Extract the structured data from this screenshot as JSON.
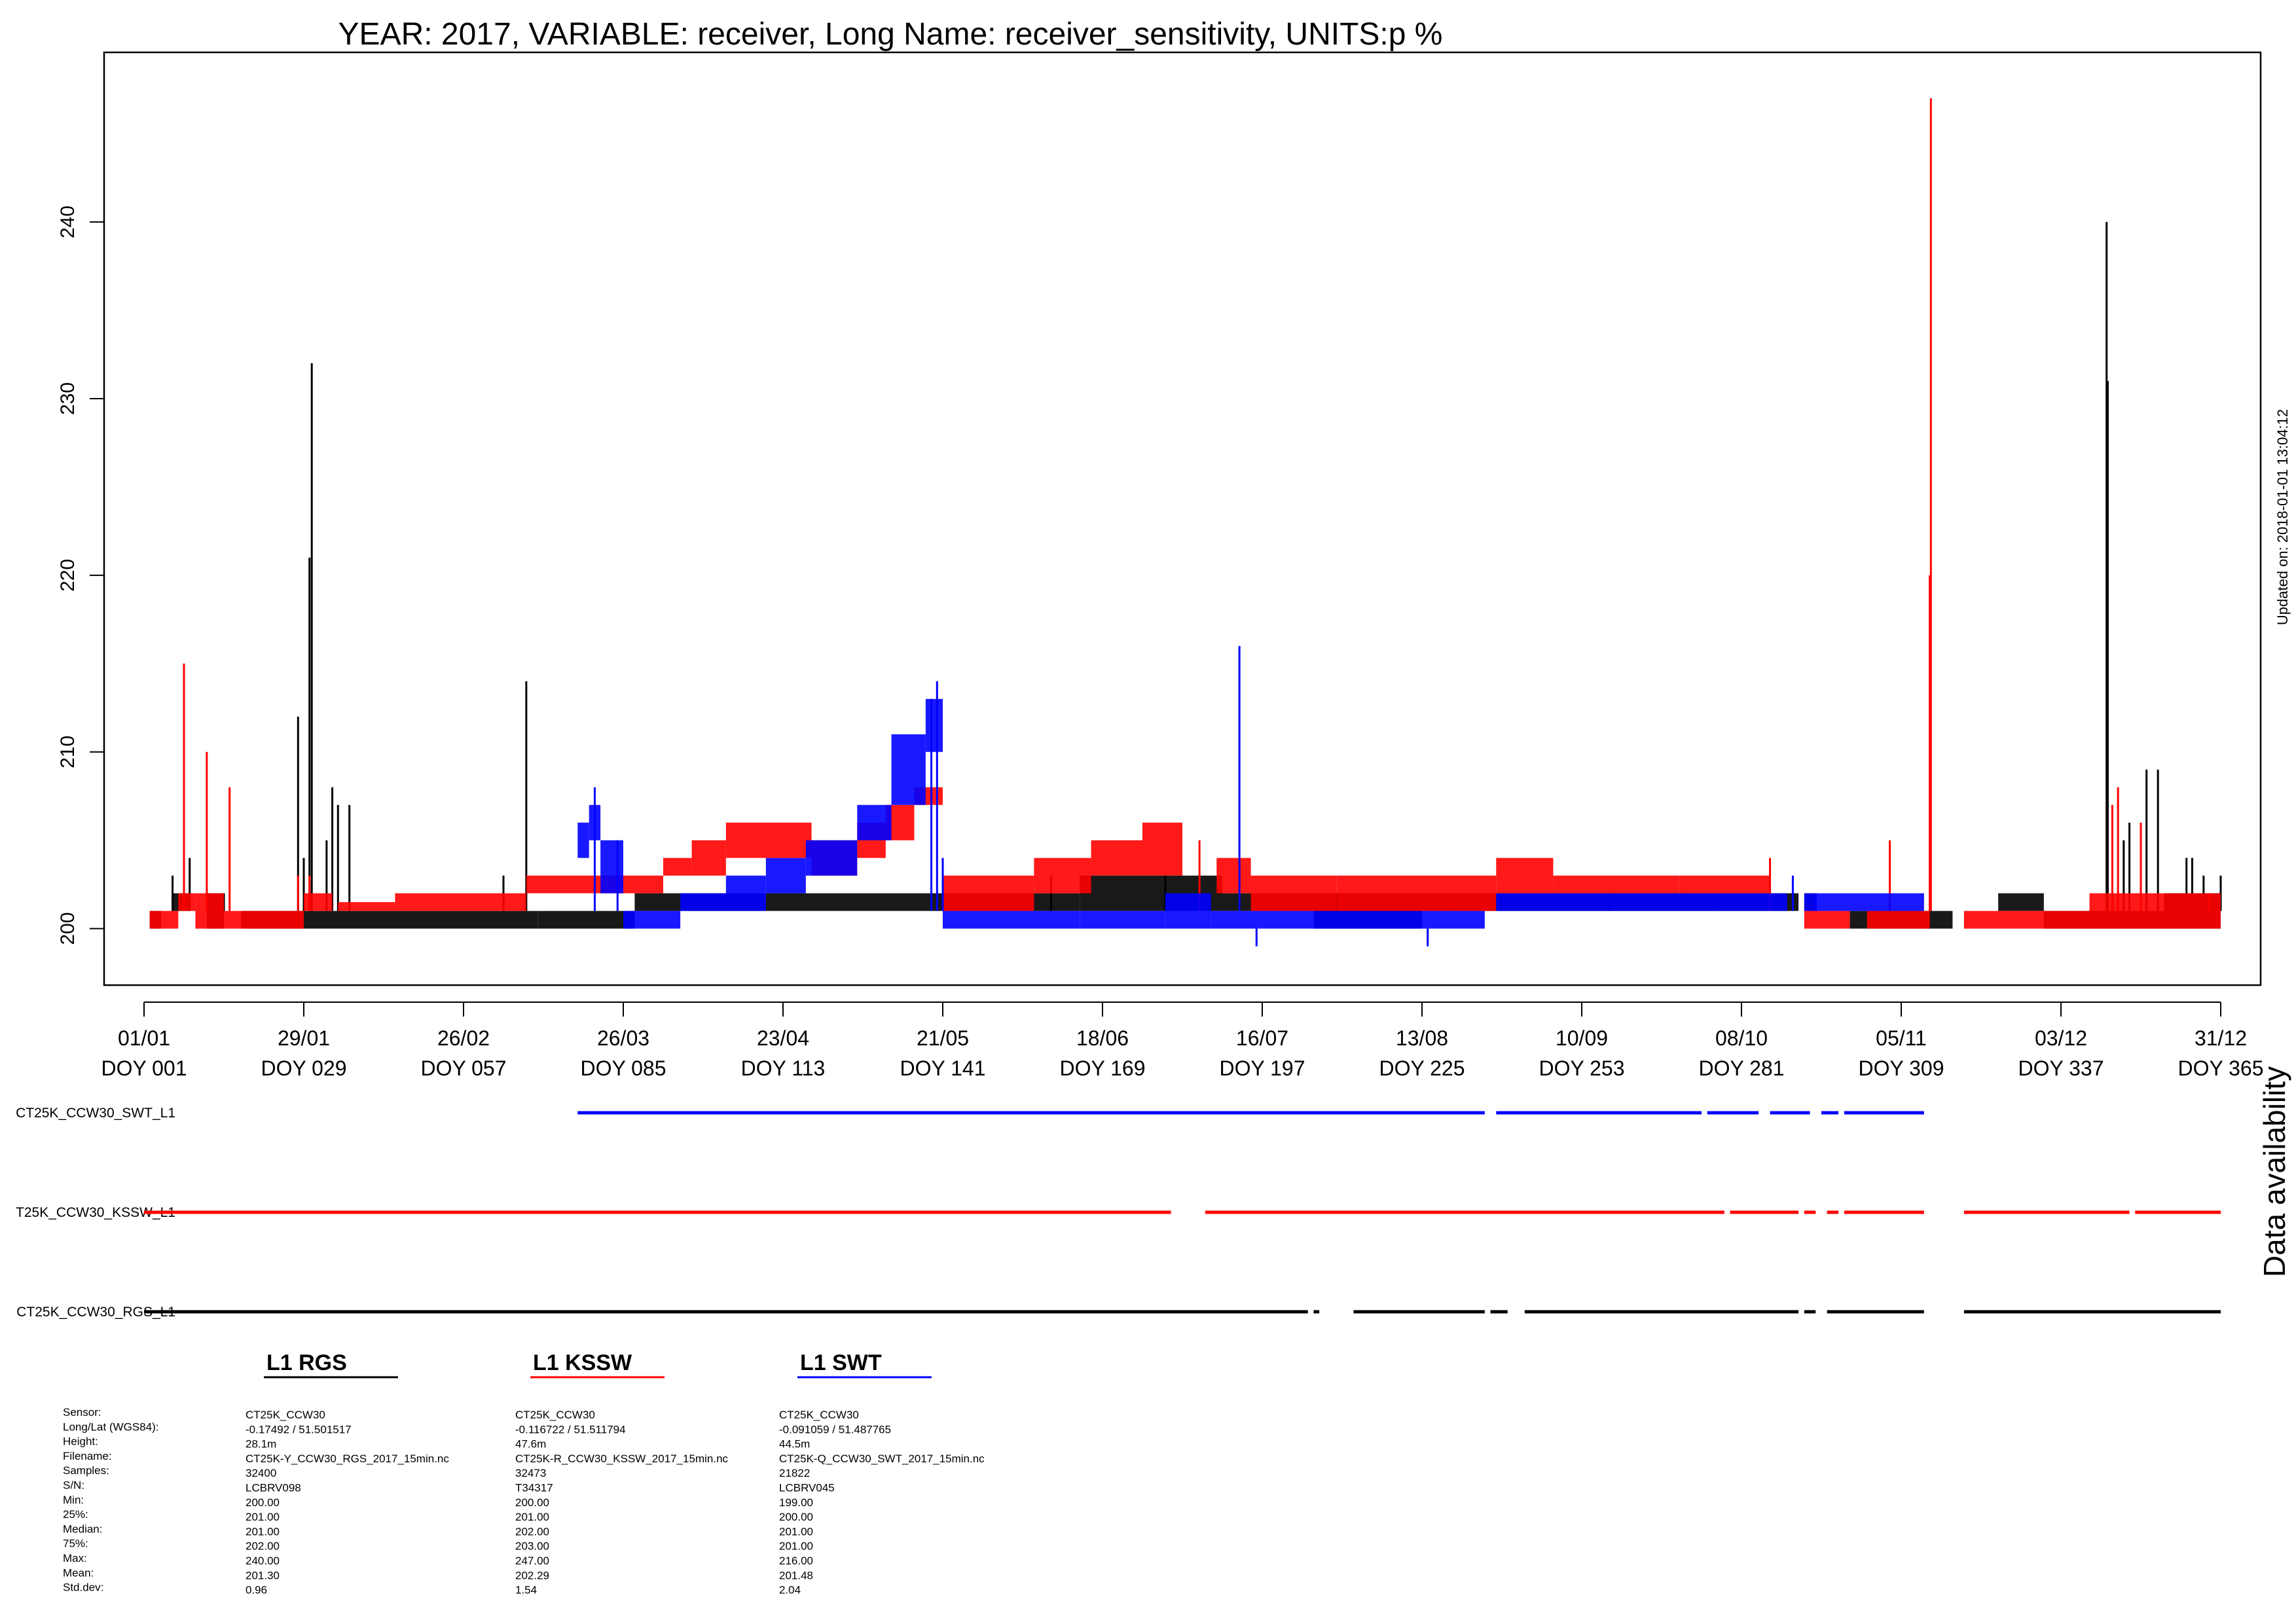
{
  "chart_data": {
    "type": "line",
    "title": "YEAR: 2017, VARIABLE: receiver, Long Name: receiver_sensitivity, UNITS:p %",
    "updated": "Updated on: 2018-01-01 13:04:12",
    "ylim": [
      196.8,
      249.6
    ],
    "xlim": [
      -6,
      372
    ],
    "yticks": [
      200,
      210,
      220,
      230,
      240
    ],
    "ytick_labels": [
      "200",
      "210",
      "220",
      "230",
      "240"
    ],
    "xticks": [
      {
        "doy": 1,
        "date": "01/01",
        "label": "DOY 001"
      },
      {
        "doy": 29,
        "date": "29/01",
        "label": "DOY 029"
      },
      {
        "doy": 57,
        "date": "26/02",
        "label": "DOY 057"
      },
      {
        "doy": 85,
        "date": "26/03",
        "label": "DOY 085"
      },
      {
        "doy": 113,
        "date": "23/04",
        "label": "DOY 113"
      },
      {
        "doy": 141,
        "date": "21/05",
        "label": "DOY 141"
      },
      {
        "doy": 169,
        "date": "18/06",
        "label": "DOY 169"
      },
      {
        "doy": 197,
        "date": "16/07",
        "label": "DOY 197"
      },
      {
        "doy": 225,
        "date": "13/08",
        "label": "DOY 225"
      },
      {
        "doy": 253,
        "date": "10/09",
        "label": "DOY 253"
      },
      {
        "doy": 281,
        "date": "08/10",
        "label": "DOY 281"
      },
      {
        "doy": 309,
        "date": "05/11",
        "label": "DOY 309"
      },
      {
        "doy": 337,
        "date": "03/12",
        "label": "DOY 337"
      },
      {
        "doy": 365,
        "date": "31/12",
        "label": "DOY 365"
      }
    ],
    "series": [
      {
        "name": "L1 RGS",
        "color": "#000000",
        "bands": [
          [
            2,
            4,
            200,
            201
          ],
          [
            6,
            9,
            201,
            202
          ],
          [
            12,
            15,
            200,
            202
          ],
          [
            18,
            29,
            200,
            201
          ],
          [
            29,
            50,
            200,
            201
          ],
          [
            50,
            70,
            200,
            201
          ],
          [
            70,
            87,
            200,
            201
          ],
          [
            87,
            110,
            201,
            202
          ],
          [
            110,
            140,
            201,
            202
          ],
          [
            140,
            165,
            201,
            202
          ],
          [
            165,
            190,
            201,
            203
          ],
          [
            190,
            206,
            201,
            202
          ],
          [
            206,
            225,
            200,
            202
          ],
          [
            225,
            245,
            201,
            202
          ],
          [
            245,
            281,
            201,
            202
          ],
          [
            281,
            291,
            201,
            202
          ],
          [
            292,
            294,
            201,
            202
          ],
          [
            300,
            318,
            200,
            201
          ],
          [
            326,
            334,
            201,
            202
          ],
          [
            334,
            355,
            200,
            201
          ],
          [
            355,
            365,
            200,
            202
          ]
        ],
        "spikes": [
          [
            6,
            203
          ],
          [
            9,
            204
          ],
          [
            15,
            202
          ],
          [
            28,
            212
          ],
          [
            29,
            204
          ],
          [
            30,
            221
          ],
          [
            30.4,
            232
          ],
          [
            33,
            205
          ],
          [
            34,
            208
          ],
          [
            35,
            207
          ],
          [
            37,
            207
          ],
          [
            68,
            214
          ],
          [
            64,
            203
          ],
          [
            160,
            203
          ],
          [
            180,
            203
          ],
          [
            210,
            202
          ],
          [
            230,
            202
          ],
          [
            258,
            202
          ],
          [
            345,
            240
          ],
          [
            345.2,
            231
          ],
          [
            348,
            205
          ],
          [
            349,
            206
          ],
          [
            352,
            209
          ],
          [
            354,
            209
          ],
          [
            359,
            204
          ],
          [
            360,
            204
          ],
          [
            362,
            203
          ],
          [
            365,
            203
          ]
        ],
        "availability": [
          [
            1,
            205
          ],
          [
            206,
            207
          ],
          [
            213,
            236
          ],
          [
            237,
            240
          ],
          [
            243,
            291
          ],
          [
            292,
            294
          ],
          [
            296,
            313
          ],
          [
            320,
            365
          ]
        ]
      },
      {
        "name": "L1 KSSW",
        "color": "#ff0000",
        "bands": [
          [
            2,
            7,
            200,
            201
          ],
          [
            7,
            10,
            201,
            202
          ],
          [
            10,
            15,
            200,
            202
          ],
          [
            15,
            29,
            200,
            201
          ],
          [
            29,
            34,
            201,
            202
          ],
          [
            35,
            45,
            201,
            201.5
          ],
          [
            45,
            68,
            201,
            202
          ],
          [
            68,
            80,
            202,
            203
          ],
          [
            80,
            92,
            202,
            203
          ],
          [
            92,
            97,
            203,
            204
          ],
          [
            97,
            103,
            203,
            205
          ],
          [
            103,
            118,
            204,
            206
          ],
          [
            118,
            126,
            203,
            205
          ],
          [
            126,
            131,
            204,
            206
          ],
          [
            131,
            136,
            205,
            207
          ],
          [
            136,
            141,
            207,
            208
          ],
          [
            141,
            157,
            201,
            203
          ],
          [
            157,
            167,
            202,
            204
          ],
          [
            167,
            176,
            203,
            205
          ],
          [
            176,
            183,
            203,
            206
          ],
          [
            189,
            195,
            202,
            204
          ],
          [
            195,
            210,
            201,
            203
          ],
          [
            210,
            238,
            201,
            203
          ],
          [
            238,
            248,
            202,
            204
          ],
          [
            248,
            270,
            202,
            203
          ],
          [
            270,
            286,
            202,
            203
          ],
          [
            292,
            300,
            200,
            201
          ],
          [
            303,
            314,
            200,
            201
          ],
          [
            320,
            342,
            200,
            201
          ],
          [
            342,
            355,
            200,
            202
          ],
          [
            355,
            365,
            200,
            202
          ]
        ],
        "spikes": [
          [
            8,
            215
          ],
          [
            12,
            210
          ],
          [
            16,
            208
          ],
          [
            28,
            203
          ],
          [
            30,
            203
          ],
          [
            186,
            205
          ],
          [
            286,
            204
          ],
          [
            307,
            205
          ],
          [
            314,
            220
          ],
          [
            314.2,
            247
          ],
          [
            346,
            207
          ],
          [
            347,
            208
          ],
          [
            351,
            206
          ],
          [
            363,
            202
          ]
        ],
        "availability": [
          [
            1,
            181
          ],
          [
            187,
            278
          ],
          [
            279,
            291
          ],
          [
            292,
            294
          ],
          [
            296,
            298
          ],
          [
            299,
            313
          ],
          [
            320,
            349
          ],
          [
            350,
            365
          ]
        ]
      },
      {
        "name": "L1 SWT",
        "color": "#0000ff",
        "bands": [
          [
            77,
            79,
            204,
            206
          ],
          [
            79,
            81,
            205,
            207
          ],
          [
            81,
            85,
            202,
            205
          ],
          [
            85,
            95,
            200,
            201
          ],
          [
            95,
            103,
            201,
            202
          ],
          [
            103,
            110,
            201,
            203
          ],
          [
            110,
            117,
            202,
            204
          ],
          [
            117,
            126,
            203,
            205
          ],
          [
            126,
            132,
            205,
            207
          ],
          [
            132,
            138,
            207,
            211
          ],
          [
            138,
            141,
            210,
            213
          ],
          [
            141,
            165,
            200,
            201
          ],
          [
            165,
            180,
            200,
            201
          ],
          [
            180,
            188,
            200,
            202
          ],
          [
            188,
            206,
            200,
            201
          ],
          [
            206,
            236,
            200,
            201
          ],
          [
            238,
            276,
            201,
            202
          ],
          [
            276,
            289,
            201,
            202
          ],
          [
            292,
            313,
            201,
            202
          ]
        ],
        "spikes": [
          [
            80,
            208
          ],
          [
            84,
            205
          ],
          [
            139,
            213
          ],
          [
            140,
            214
          ],
          [
            141,
            204
          ],
          [
            193,
            216
          ],
          [
            196,
            199
          ],
          [
            226,
            199
          ],
          [
            200,
            200
          ],
          [
            290,
            203
          ],
          [
            294,
            202
          ]
        ],
        "availability": [
          [
            77,
            236
          ],
          [
            238,
            274
          ],
          [
            275,
            284
          ],
          [
            286,
            293
          ],
          [
            295,
            298
          ],
          [
            299,
            313
          ]
        ]
      }
    ],
    "availability_title": "Data availability",
    "availability_rows": [
      {
        "label": "CT25K_CCW30_SWT_L1",
        "series": 2
      },
      {
        "label": "T25K_CCW30_KSSW_L1",
        "series": 1
      },
      {
        "label": "CT25K_CCW30_RGS_L1",
        "series": 0
      }
    ],
    "legend": [
      {
        "label": "L1 RGS",
        "color": "#000000"
      },
      {
        "label": "L1 KSSW",
        "color": "#ff0000"
      },
      {
        "label": "L1 SWT",
        "color": "#0000ff"
      }
    ],
    "stats_labels": [
      "Sensor:",
      "Long/Lat (WGS84):",
      "Height:",
      "Filename:",
      "Samples:",
      "S/N:",
      "Min:",
      "25%:",
      "Median:",
      "75%:",
      "Max:",
      "Mean:",
      "Std.dev:"
    ],
    "stats": [
      [
        "CT25K_CCW30",
        "-0.17492 / 51.501517",
        "28.1m",
        "CT25K-Y_CCW30_RGS_2017_15min.nc",
        "32400",
        "LCBRV098",
        "200.00",
        "201.00",
        "201.00",
        "202.00",
        "240.00",
        "201.30",
        "0.96"
      ],
      [
        "CT25K_CCW30",
        "-0.116722 / 51.511794",
        "47.6m",
        "CT25K-R_CCW30_KSSW_2017_15min.nc",
        "32473",
        "T34317",
        "200.00",
        "201.00",
        "202.00",
        "203.00",
        "247.00",
        "202.29",
        "1.54"
      ],
      [
        "CT25K_CCW30",
        "-0.091059 / 51.487765",
        "44.5m",
        "CT25K-Q_CCW30_SWT_2017_15min.nc",
        "21822",
        "LCBRV045",
        "199.00",
        "200.00",
        "201.00",
        "201.00",
        "216.00",
        "201.48",
        "2.04"
      ]
    ]
  }
}
